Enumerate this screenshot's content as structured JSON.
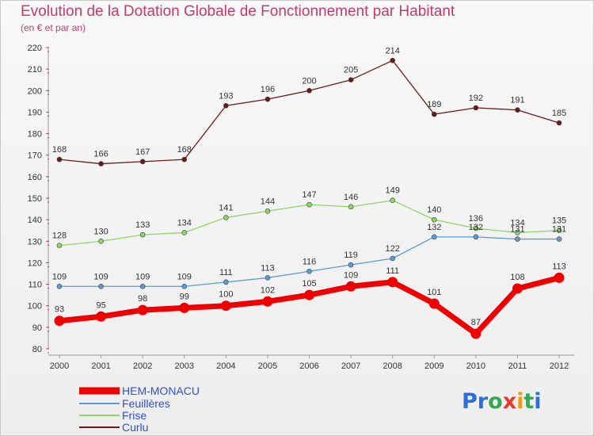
{
  "title": "Evolution de la Dotation Globale de Fonctionnement par Habitant",
  "subtitle": "(en € et par an)",
  "logo_text": "Proxiti",
  "chart_data": {
    "type": "line",
    "title": "Evolution de la Dotation Globale de Fonctionnement par Habitant",
    "subtitle": "(en € et par an)",
    "x": [
      2000,
      2001,
      2002,
      2003,
      2004,
      2005,
      2006,
      2007,
      2008,
      2009,
      2010,
      2011,
      2012
    ],
    "ylim": [
      80,
      220
    ],
    "yticks": [
      80,
      90,
      100,
      110,
      120,
      130,
      140,
      150,
      160,
      170,
      180,
      190,
      200,
      210,
      220
    ],
    "grid": false,
    "legend_position": "bottom-left",
    "series": [
      {
        "name": "Curlu",
        "color": "#6b1a1a",
        "values": [
          168,
          166,
          167,
          168,
          193,
          196,
          200,
          205,
          214,
          189,
          192,
          191,
          185
        ]
      },
      {
        "name": "Frise",
        "color": "#8fd468",
        "values": [
          128,
          130,
          133,
          134,
          141,
          144,
          147,
          146,
          149,
          140,
          136,
          134,
          135
        ]
      },
      {
        "name": "Feuillères",
        "color": "#5b9bd5",
        "values": [
          109,
          109,
          109,
          109,
          111,
          113,
          116,
          119,
          122,
          132,
          132,
          131,
          131
        ]
      },
      {
        "name": "HEM-MONACU",
        "color": "#ee0000",
        "values": [
          93,
          95,
          98,
          99,
          100,
          102,
          105,
          109,
          111,
          101,
          87,
          108,
          113
        ]
      }
    ],
    "legend_order": [
      "HEM-MONACU",
      "Feuillères",
      "Frise",
      "Curlu"
    ]
  }
}
